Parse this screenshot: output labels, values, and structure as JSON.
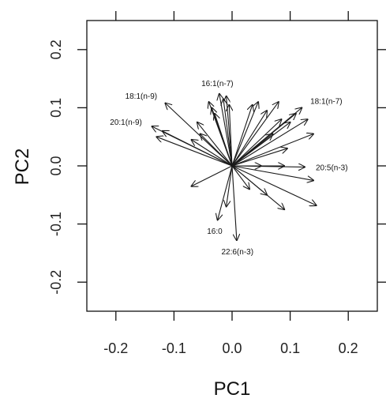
{
  "chart_data": {
    "type": "scatter",
    "subtype": "biplot-loading-vectors",
    "title": "",
    "xlabel": "PC1",
    "ylabel": "PC2",
    "xlim": [
      -0.25,
      0.25
    ],
    "ylim": [
      -0.25,
      0.25
    ],
    "xticks": [
      -0.2,
      -0.1,
      0.0,
      0.1,
      0.2
    ],
    "yticks": [
      -0.2,
      -0.1,
      0.0,
      0.1,
      0.2
    ],
    "xtick_labels": [
      "-0.2",
      "-0.1",
      "0.0",
      "0.1",
      "0.2"
    ],
    "ytick_labels": [
      "-0.2",
      "-0.1",
      "0.0",
      "0.1",
      "0.2"
    ],
    "grid": false,
    "origin": [
      0.0,
      0.0
    ],
    "vectors": [
      {
        "label": "18:1(n-9)",
        "x": -0.115,
        "y": 0.108
      },
      {
        "label": "16:1(n-7)",
        "x": -0.022,
        "y": 0.124
      },
      {
        "label": "18:1(n-7)",
        "x": 0.12,
        "y": 0.1
      },
      {
        "label": "20:1(n-9)",
        "x": -0.138,
        "y": 0.068
      },
      {
        "label": "20:5(n-3)",
        "x": 0.125,
        "y": -0.002
      },
      {
        "label": "16:0",
        "x": -0.025,
        "y": -0.093
      },
      {
        "label": "22:6(n-3)",
        "x": 0.008,
        "y": -0.128
      },
      {
        "label": "",
        "x": -0.04,
        "y": 0.11
      },
      {
        "label": "",
        "x": -0.035,
        "y": 0.1
      },
      {
        "label": "",
        "x": -0.03,
        "y": 0.09
      },
      {
        "label": "",
        "x": -0.015,
        "y": 0.115
      },
      {
        "label": "",
        "x": -0.01,
        "y": 0.12
      },
      {
        "label": "",
        "x": -0.005,
        "y": 0.105
      },
      {
        "label": "",
        "x": -0.06,
        "y": 0.075
      },
      {
        "label": "",
        "x": -0.055,
        "y": 0.055
      },
      {
        "label": "",
        "x": -0.07,
        "y": 0.045
      },
      {
        "label": "",
        "x": -0.12,
        "y": 0.06
      },
      {
        "label": "",
        "x": -0.13,
        "y": 0.05
      },
      {
        "label": "",
        "x": 0.035,
        "y": 0.105
      },
      {
        "label": "",
        "x": 0.045,
        "y": 0.11
      },
      {
        "label": "",
        "x": 0.06,
        "y": 0.095
      },
      {
        "label": "",
        "x": 0.08,
        "y": 0.11
      },
      {
        "label": "",
        "x": 0.085,
        "y": 0.08
      },
      {
        "label": "",
        "x": 0.1,
        "y": 0.075
      },
      {
        "label": "",
        "x": 0.11,
        "y": 0.09
      },
      {
        "label": "",
        "x": 0.13,
        "y": 0.08
      },
      {
        "label": "",
        "x": 0.07,
        "y": 0.055
      },
      {
        "label": "",
        "x": 0.14,
        "y": 0.055
      },
      {
        "label": "",
        "x": 0.095,
        "y": 0.03
      },
      {
        "label": "",
        "x": 0.09,
        "y": 0.0
      },
      {
        "label": "",
        "x": 0.05,
        "y": 0.0
      },
      {
        "label": "",
        "x": 0.14,
        "y": -0.025
      },
      {
        "label": "",
        "x": 0.145,
        "y": -0.068
      },
      {
        "label": "",
        "x": 0.09,
        "y": -0.075
      },
      {
        "label": "",
        "x": 0.06,
        "y": -0.05
      },
      {
        "label": "",
        "x": 0.03,
        "y": -0.04
      },
      {
        "label": "",
        "x": -0.07,
        "y": -0.035
      },
      {
        "label": "",
        "x": -0.01,
        "y": -0.07
      }
    ]
  },
  "colors": {
    "arrow": "#1a1a1a",
    "frame": "#111111",
    "background": "#ffffff"
  }
}
